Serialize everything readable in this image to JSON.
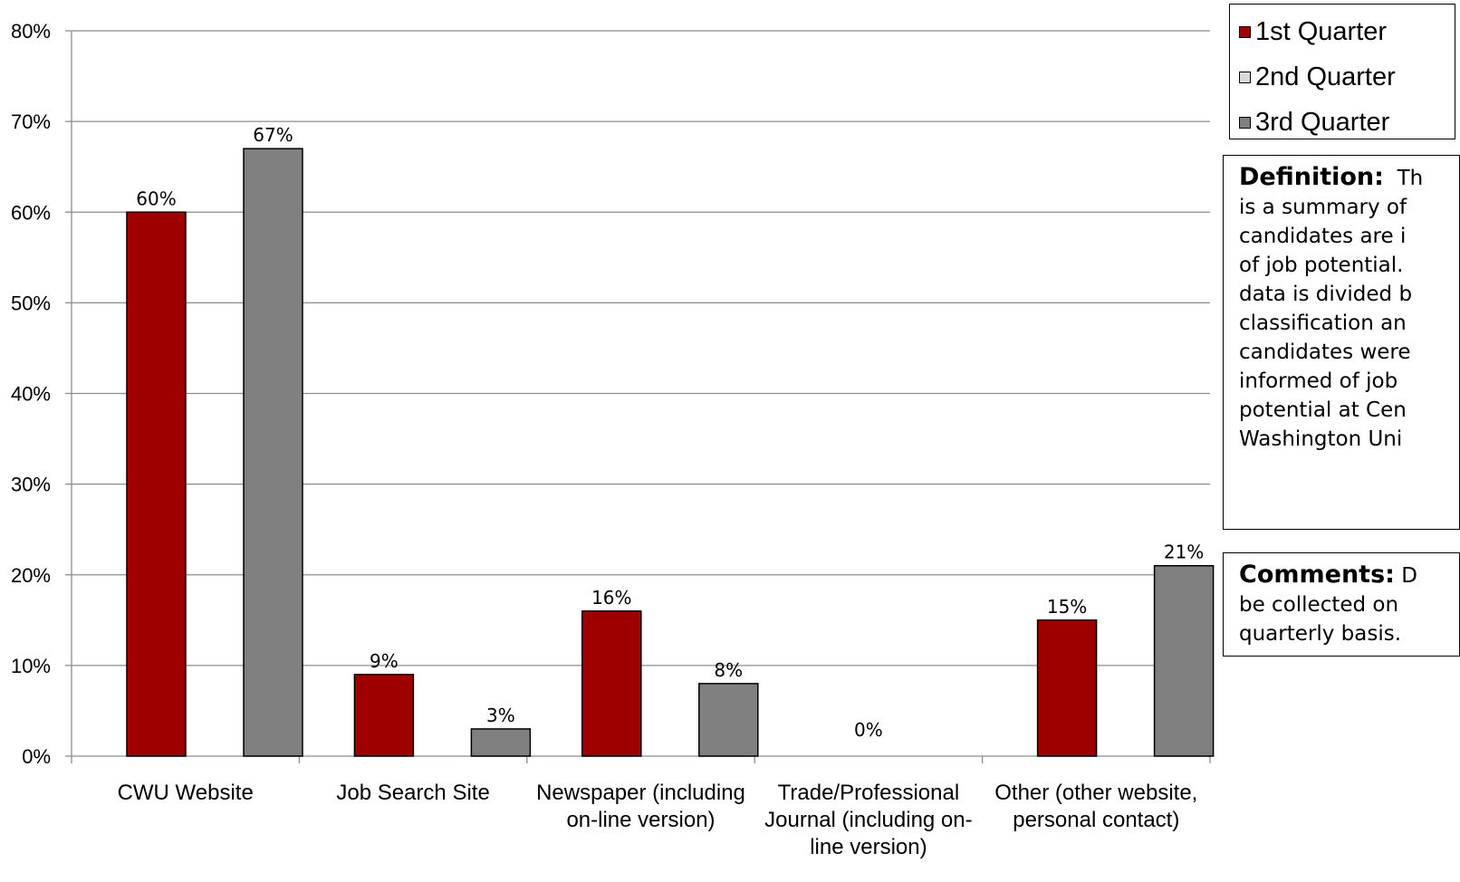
{
  "chart_data": {
    "type": "bar",
    "categories": [
      [
        "CWU Website"
      ],
      [
        "Job Search Site"
      ],
      [
        "Newspaper (including",
        "on-line version)"
      ],
      [
        "Trade/Professional",
        "Journal (including on-",
        "line version)"
      ],
      [
        "Other (other website,",
        "personal contact)"
      ]
    ],
    "series": [
      {
        "name": "1st Quarter",
        "color": "#9e0000",
        "values": [
          60,
          9,
          16,
          0,
          15
        ],
        "labels": [
          "60%",
          "9%",
          "16%",
          "0%",
          "15%"
        ]
      },
      {
        "name": "2nd Quarter",
        "color": "#d9d9d9",
        "values": [
          null,
          null,
          null,
          null,
          null
        ],
        "labels": [
          null,
          null,
          null,
          null,
          null
        ]
      },
      {
        "name": "3rd Quarter",
        "color": "#808080",
        "values": [
          67,
          3,
          8,
          null,
          21
        ],
        "labels": [
          "67%",
          "3%",
          "8%",
          null,
          "21%"
        ]
      }
    ],
    "ylim": [
      0,
      80
    ],
    "yticks": [
      "0%",
      "10%",
      "20%",
      "30%",
      "40%",
      "50%",
      "60%",
      "70%",
      "80%"
    ],
    "grid": true,
    "legend_position": "top-right"
  },
  "definition": {
    "title": "Definition:",
    "lines": [
      "Th",
      "is a summary of",
      "candidates are i",
      "of job potential.",
      "data is divided b",
      "classification an",
      "candidates were",
      "informed of job",
      "potential at Cen",
      "Washington Uni"
    ]
  },
  "comments": {
    "title": "Comments:",
    "lines": [
      "D",
      "be collected on",
      "quarterly basis."
    ]
  }
}
